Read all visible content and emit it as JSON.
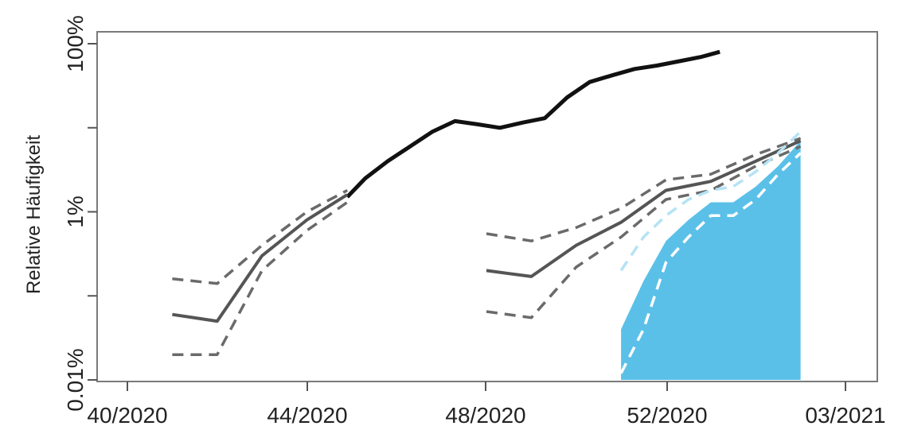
{
  "chart_data": {
    "type": "line",
    "title": "",
    "xlabel": "",
    "ylabel": "Relative Häufigkeit",
    "y_scale": "log",
    "ylim": [
      0.01,
      100
    ],
    "x_ticks": [
      "40/2020",
      "44/2020",
      "48/2020",
      "52/2020",
      "03/2021"
    ],
    "y_ticks": [
      "0.01%",
      "1%",
      "100%"
    ],
    "grid": false,
    "legend": "none",
    "colors": {
      "main_line": "#111111",
      "estimate_line": "#555555",
      "estimate_band": "#6a6a6a",
      "fill": "#5bc0e8",
      "fill_band": "#ffffff",
      "fill_band_outer": "#b5e3f5"
    },
    "series": [
      {
        "style": "main",
        "x": [
          44.9,
          45.3,
          45.8,
          46.3,
          46.8,
          47.3,
          47.8,
          48.3,
          48.8,
          49.3,
          49.8,
          50.3,
          50.8,
          51.3,
          51.8,
          52.3,
          52.8,
          53.2
        ],
        "y": [
          1.5,
          2.5,
          4.0,
          6.0,
          9.0,
          12.0,
          11.0,
          10.0,
          11.5,
          13.0,
          23.0,
          35.0,
          42.0,
          50.0,
          55.0,
          62.0,
          70.0,
          80.0
        ]
      },
      {
        "style": "estimate",
        "x": [
          41.0,
          42.0,
          43.0,
          44.0,
          44.9
        ],
        "y": [
          0.06,
          0.05,
          0.3,
          0.8,
          1.6
        ]
      },
      {
        "style": "band",
        "x": [
          41.0,
          42.0,
          43.0,
          44.0,
          44.9
        ],
        "y": [
          0.16,
          0.14,
          0.4,
          1.0,
          1.8
        ]
      },
      {
        "style": "band",
        "x": [
          41.0,
          42.0,
          43.0,
          44.0,
          44.9
        ],
        "y": [
          0.02,
          0.02,
          0.2,
          0.6,
          1.3
        ]
      },
      {
        "style": "estimate",
        "x": [
          48.0,
          49.0,
          50.0,
          51.0,
          52.0,
          53.0,
          54.0,
          55.0
        ],
        "y": [
          0.2,
          0.17,
          0.4,
          0.75,
          1.8,
          2.3,
          4.0,
          7.0
        ]
      },
      {
        "style": "band",
        "x": [
          48.0,
          49.0,
          50.0,
          51.0,
          52.0,
          53.0,
          54.0,
          55.0
        ],
        "y": [
          0.55,
          0.45,
          0.65,
          1.1,
          2.4,
          2.8,
          4.8,
          7.5
        ]
      },
      {
        "style": "band",
        "x": [
          48.0,
          49.0,
          50.0,
          51.0,
          52.0,
          53.0,
          54.0,
          55.0
        ],
        "y": [
          0.065,
          0.055,
          0.22,
          0.5,
          1.4,
          1.8,
          3.5,
          6.0
        ]
      },
      {
        "style": "fill",
        "x": [
          51.0,
          51.5,
          52.0,
          52.5,
          53.0,
          53.5,
          54.0,
          54.5,
          55.0
        ],
        "y": [
          0.04,
          0.15,
          0.45,
          0.8,
          1.3,
          1.3,
          2.0,
          3.5,
          7.0
        ]
      },
      {
        "style": "fill-band",
        "x": [
          51.0,
          51.5,
          52.0,
          52.5,
          53.0,
          53.5,
          54.0,
          54.5,
          55.0
        ],
        "y": [
          0.012,
          0.04,
          0.25,
          0.5,
          0.9,
          0.9,
          1.4,
          2.8,
          5.0
        ]
      },
      {
        "style": "fill-band-outer",
        "x": [
          51.0,
          51.5,
          52.0,
          52.5,
          53.0,
          53.5,
          54.0,
          54.5,
          55.0
        ],
        "y": [
          0.2,
          0.5,
          0.9,
          1.4,
          1.8,
          2.0,
          3.0,
          5.0,
          9.0
        ]
      }
    ]
  }
}
